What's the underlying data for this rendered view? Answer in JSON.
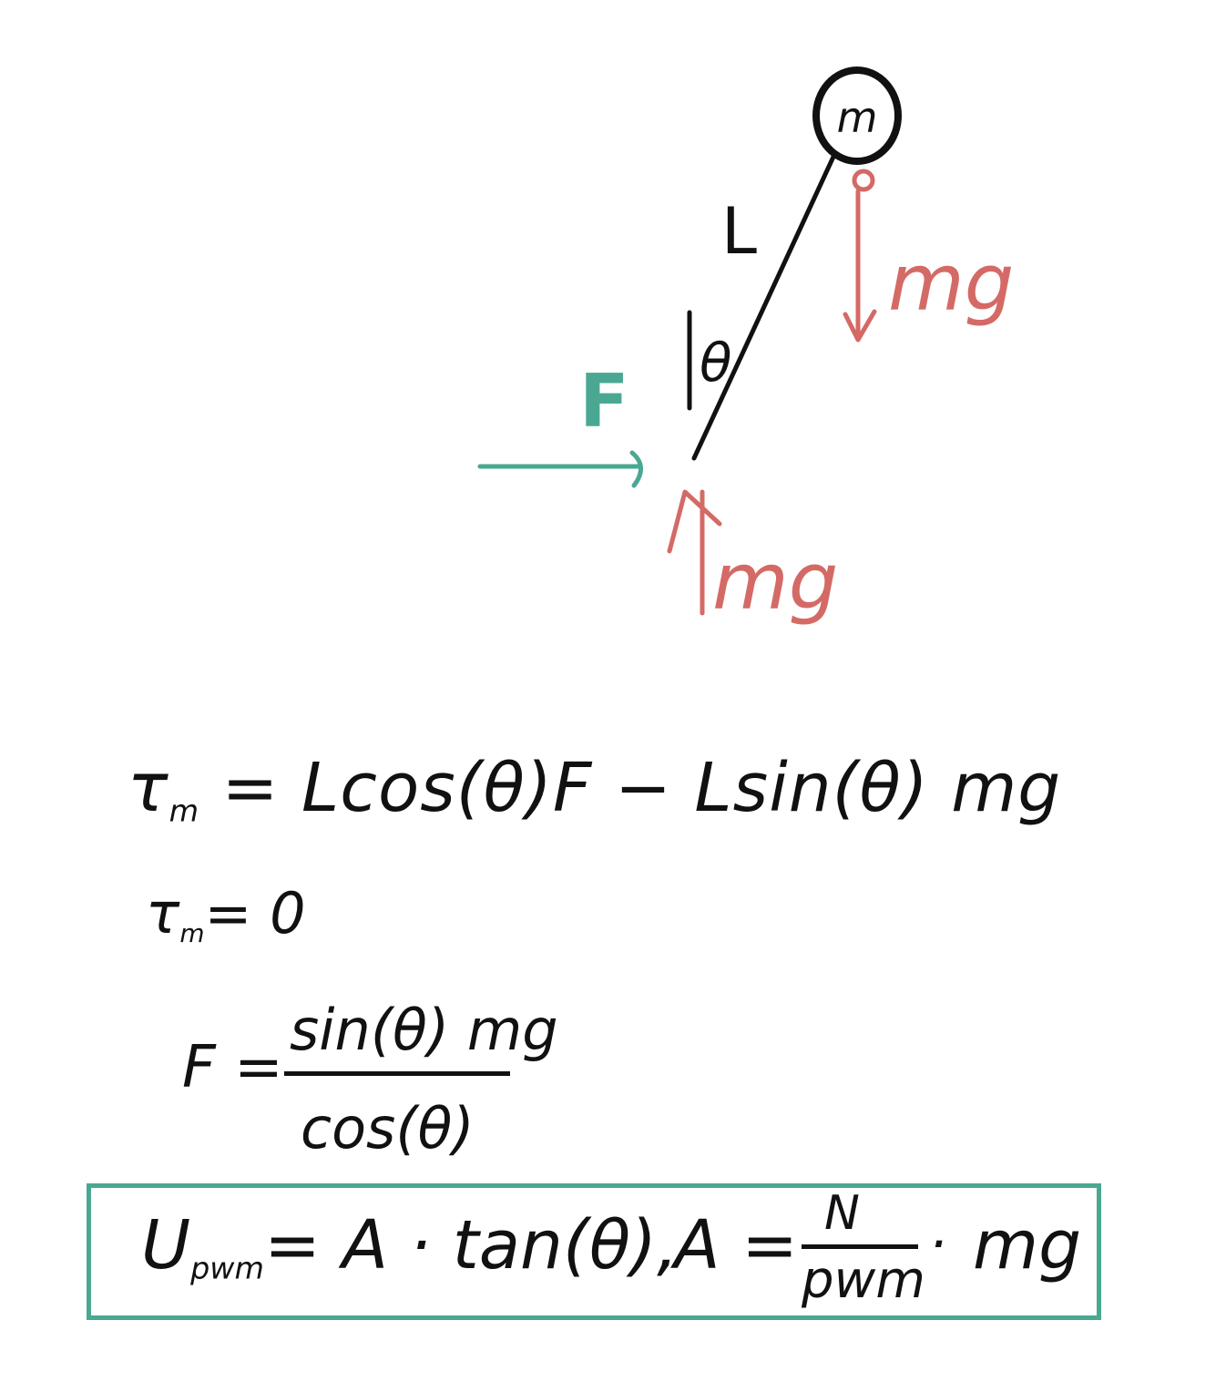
{
  "colors": {
    "ink": "#111111",
    "force_green": "#4aa892",
    "gravity_red": "#d46a66",
    "box_border": "#4aa892"
  },
  "diagram": {
    "mass_label": "m",
    "length_label": "L",
    "angle_label": "θ",
    "force_label": "F",
    "weight_label_top": "mg",
    "weight_label_bottom": "mg"
  },
  "equations": {
    "torque_symbol": "τ",
    "torque_sub": "m",
    "torque_rhs": "= Lcos(θ)F − Lsin(θ) mg",
    "equilibrium_sub": "m",
    "equilibrium_rhs": "= 0",
    "force_lhs": "F =",
    "force_numerator": "sin(θ) mg",
    "force_denominator": "cos(θ)"
  },
  "result": {
    "u_symbol": "U",
    "u_sub": "pwm",
    "u_rhs": "= A · tan(θ),",
    "a_lhs": "A =",
    "a_numerator": "N",
    "a_denominator": "pwm",
    "a_dot": "·",
    "a_mg": "mg"
  }
}
